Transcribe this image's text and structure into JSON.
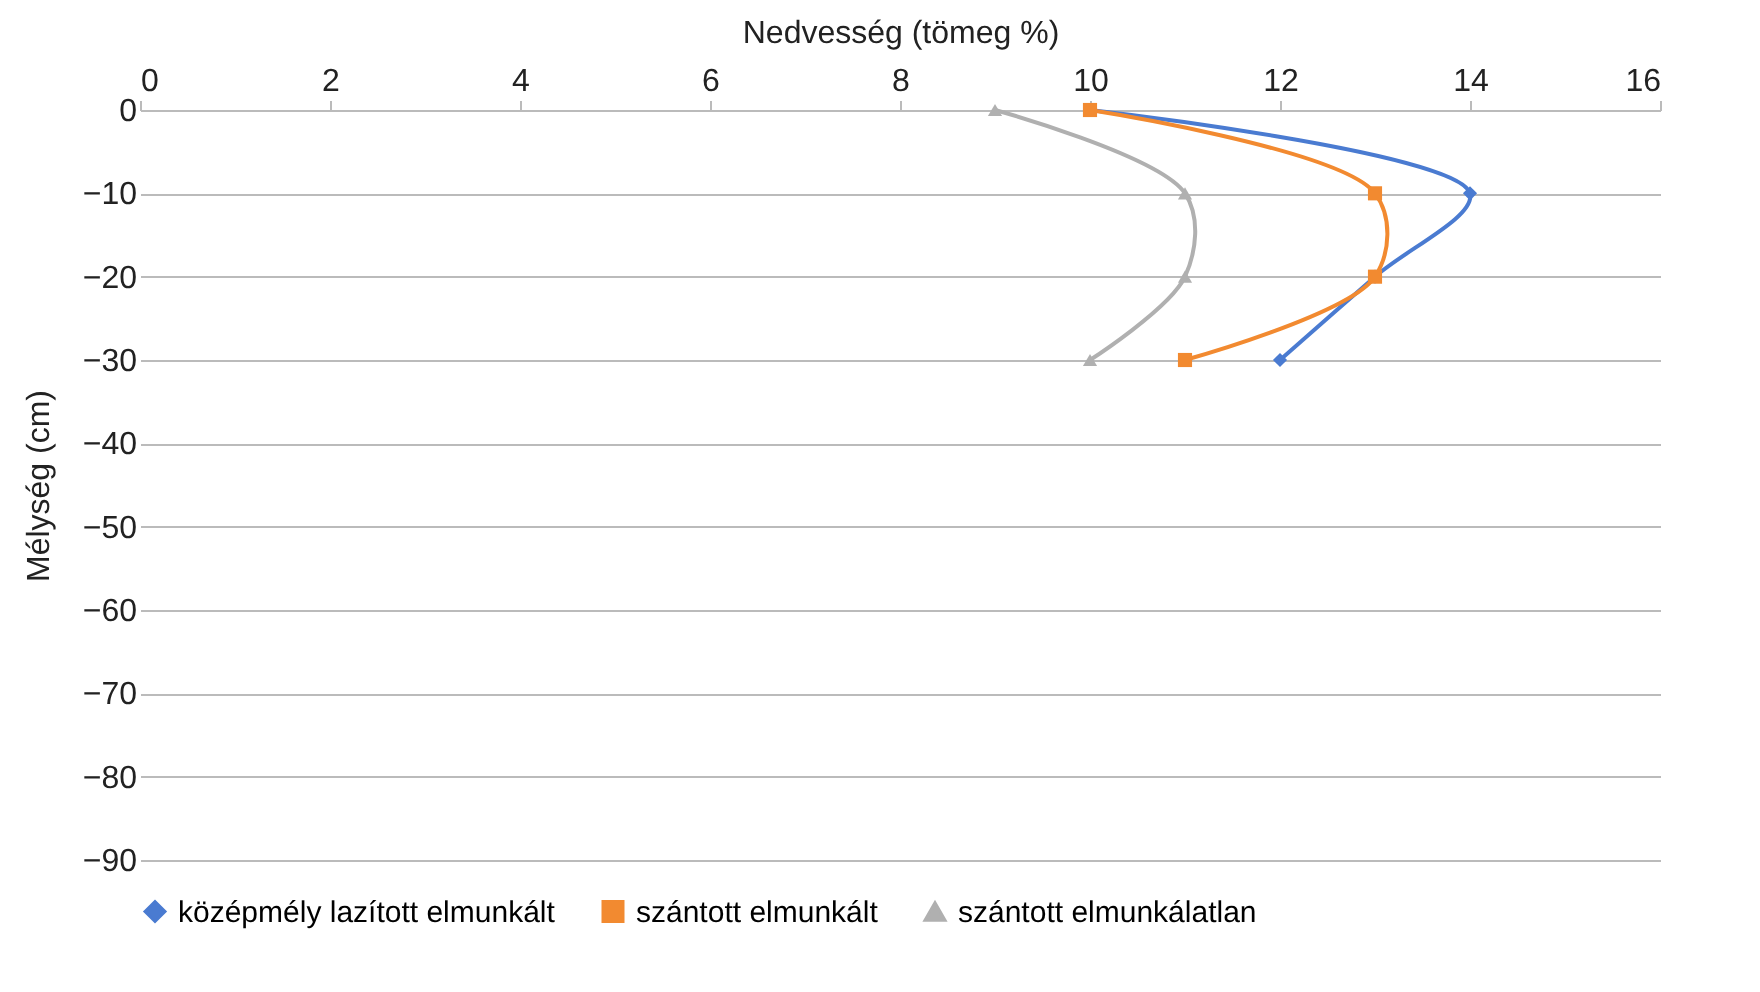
{
  "chart_data": {
    "type": "line",
    "xlabel": "Nedvesség (tömeg %)",
    "ylabel": "Mélység (cm)",
    "xlim": [
      0,
      16
    ],
    "xticks": [
      0,
      2,
      4,
      6,
      8,
      10,
      12,
      14,
      16
    ],
    "ylim": [
      -90,
      0
    ],
    "yticks": [
      -90,
      -80,
      -70,
      -60,
      -50,
      -40,
      -30,
      -20,
      -10,
      0
    ],
    "grid": "y",
    "legend": "bottom",
    "series": [
      {
        "name": "középmély lazított elmunkált",
        "color": "#4a7bd1",
        "marker": "diamond",
        "x": [
          10,
          14,
          13,
          12
        ],
        "values": [
          0,
          -10,
          -20,
          -30
        ]
      },
      {
        "name": "szántott elmunkált",
        "color": "#f28a30",
        "marker": "square",
        "x": [
          10,
          13,
          13,
          11
        ],
        "values": [
          0,
          -10,
          -20,
          -30
        ]
      },
      {
        "name": "szántott elmunkálatlan",
        "color": "#b0b0b0",
        "marker": "triangle",
        "x": [
          9,
          11,
          11,
          10
        ],
        "values": [
          0,
          -10,
          -20,
          -30
        ]
      }
    ]
  }
}
